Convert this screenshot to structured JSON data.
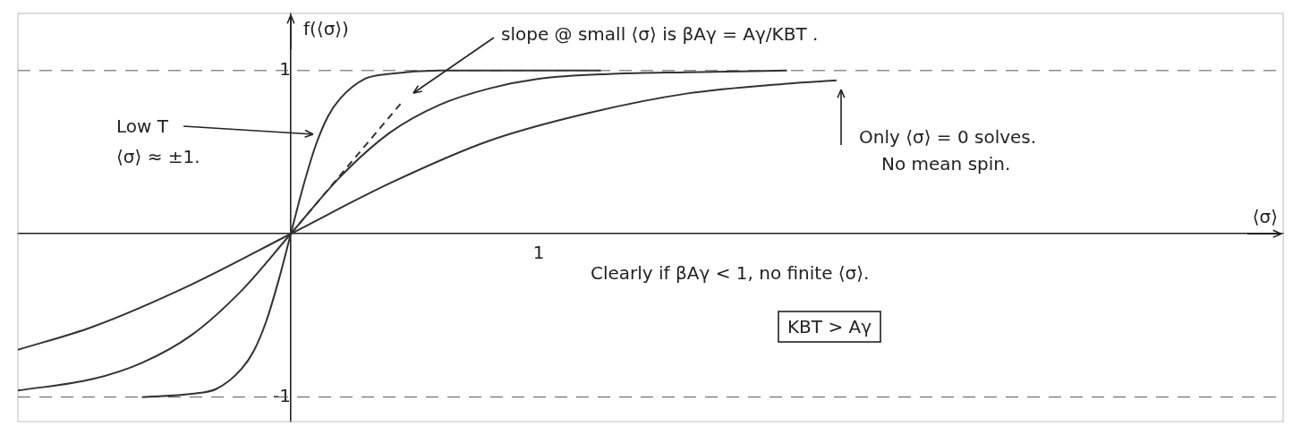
{
  "chart_data": {
    "type": "line",
    "xlabel": "⟨σ⟩",
    "ylabel": "f(⟨σ⟩)",
    "xlim": [
      -1.1,
      4.0
    ],
    "ylim": [
      -1.15,
      1.35
    ],
    "xticks": [
      1
    ],
    "yticks": [
      -1,
      1
    ],
    "grid": "y",
    "series": [
      {
        "color": "#333333",
        "line_style": "solid",
        "x": [
          -0.6,
          -0.4,
          -0.3,
          -0.2,
          -0.15,
          -0.1,
          -0.05,
          0,
          0.05,
          0.1,
          0.15,
          0.2,
          0.3,
          0.4,
          0.6,
          0.9,
          1.25
        ],
        "values": [
          -1.0,
          -0.98,
          -0.95,
          -0.83,
          -0.72,
          -0.54,
          -0.29,
          0,
          0.29,
          0.54,
          0.72,
          0.83,
          0.95,
          0.98,
          1.0,
          1.0,
          1.0
        ]
      },
      {
        "color": "#333333",
        "line_style": "solid",
        "x": [
          -1.1,
          -0.8,
          -0.6,
          -0.4,
          -0.2,
          0,
          0.2,
          0.4,
          0.6,
          0.8,
          1.0,
          1.3,
          1.6,
          2.0
        ],
        "values": [
          -0.96,
          -0.89,
          -0.79,
          -0.62,
          -0.35,
          0,
          0.35,
          0.62,
          0.79,
          0.89,
          0.95,
          0.98,
          0.99,
          1.0
        ]
      },
      {
        "color": "#333333",
        "line_style": "solid",
        "x": [
          -1.1,
          -0.8,
          -0.4,
          0,
          0.4,
          0.8,
          1.2,
          1.6,
          2.0,
          2.2
        ],
        "values": [
          -0.71,
          -0.57,
          -0.31,
          0,
          0.31,
          0.57,
          0.74,
          0.86,
          0.92,
          0.94
        ]
      },
      {
        "color": "#333333",
        "line_style": "dashed",
        "x": [
          0,
          0.45
        ],
        "values": [
          0,
          0.81
        ]
      }
    ],
    "annotations": [
      "slope @ small ⟨σ⟩ is βAγ = Aγ/KBT .",
      "Low T",
      "⟨σ⟩ ≈ ±1.",
      "Only ⟨σ⟩ = 0 solves.",
      "No mean spin.",
      "Clearly if βAγ < 1, no finite ⟨σ⟩.",
      "KBT > Aγ"
    ]
  }
}
